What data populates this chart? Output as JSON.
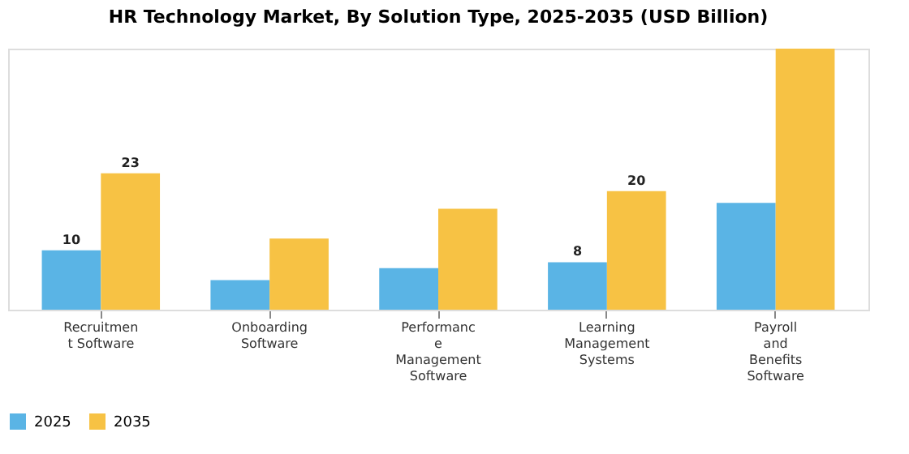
{
  "chart_data": {
    "type": "bar",
    "title": "HR Technology Market, By Solution Type, 2025-2035 (USD Billion)",
    "categories": [
      "Recruitmen\nt Software",
      "Onboarding\nSoftware",
      "Performanc\ne\nManagement\nSoftware",
      "Learning\nManagement\nSystems",
      "Payroll\nand\nBenefits\nSoftware"
    ],
    "series": [
      {
        "name": "2025",
        "color": "#5ab4e5",
        "values": [
          10,
          5,
          7,
          8,
          18
        ],
        "value_labels": [
          "10",
          null,
          null,
          "8",
          null
        ]
      },
      {
        "name": "2035",
        "color": "#f7c244",
        "values": [
          23,
          12,
          17,
          20,
          44
        ],
        "value_labels": [
          "23",
          null,
          null,
          "20",
          null
        ]
      }
    ],
    "legend": "bottom",
    "grid": false
  }
}
